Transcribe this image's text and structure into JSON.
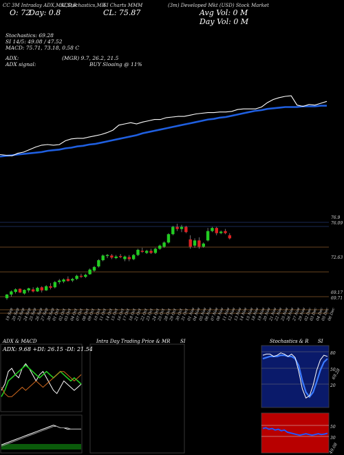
{
  "header": {
    "line1_left": "CC 3M Intraday ADX,MACD,R",
    "line1_mid": "SI,Stochastics,MR",
    "line1_mid2": "SI Charts MMM",
    "line1_right": "(3m) Developed Mkt (USD) Stock Market",
    "open_label": "O: 72",
    "day_label": "Day: 0.8",
    "close_label": "CL: 75.87",
    "avg_vol": "Avg Vol: 0  M",
    "day_vol": "Day Vol: 0   M"
  },
  "info": {
    "stoch": "Stochastics: 69.28",
    "rsi": "SI 14/5: 49.08 / 47.52",
    "macd": "MACD: 75.71, 73.18, 0.58  C",
    "adx": "ADX:",
    "adx_val": "(MGR) 9.7, 26.2, 21.5",
    "adx_signal": "ADX  signal:",
    "adx_signal_val": "BUY Sloaing @ 11%"
  },
  "price_labels": {
    "p1": "76.9",
    "p2": "76.09",
    "p3": "72.63",
    "p4": "69.17",
    "p5": "69.71"
  },
  "dates": [
    "19 Sep",
    "20 Sep",
    "23 Sep",
    "24 Sep",
    "25 Sep",
    "26 Sep",
    "27 Sep",
    "30 Sep",
    "01 Oct",
    "02 Oct",
    "03 Oct",
    "04 Oct",
    "07 Oct",
    "08 Oct",
    "09 Oct",
    "10 Oct",
    "11 Oct",
    "14 Oct",
    "15 Oct",
    "16 Oct",
    "17 Oct",
    "18 Oct",
    "21 Oct",
    "22 Oct",
    "23 Oct",
    "24 Oct",
    "25 Oct",
    "28 Oct",
    "29 Oct",
    "30 Oct",
    "31 Oct",
    "01 Nov",
    "04 Nov",
    "05 Nov",
    "06 Nov",
    "07 Nov",
    "08 Nov",
    "11 Nov",
    "12 Nov",
    "13 Nov",
    "14 Nov",
    "15 Nov",
    "18 Nov",
    "19 Nov",
    "20 Nov",
    "21 Nov",
    "22 Nov",
    "25 Nov",
    "26 Nov",
    "27 Nov",
    "29 Nov",
    "02 Dec",
    "03 Dec",
    "04 Dec",
    "05 Dec",
    "06 Dec"
  ],
  "panels": {
    "adx_title": "ADX  & MACD",
    "adx_readout": "ADX: 9.68  +DI: 26.15 -DI: 21.54",
    "mr_title": "Intra  Day Trading Price  & MR",
    "mr_si": "SI",
    "stoch_title": "Stochastics & R",
    "stoch_si": "SI",
    "stoch_levels": [
      "80",
      "50",
      "20"
    ],
    "stoch_value": "69.28",
    "rsi_levels": [
      "50",
      "30"
    ],
    "rsi_value": "49.08"
  },
  "colors": {
    "up": "#22cc22",
    "down": "#dd2222",
    "ema": "#1f5fe0",
    "price_line": "#ffffff",
    "gridline": "#8a5a2a",
    "stoch_bg": "#0a1a6a",
    "rsi_bg": "#b80000"
  },
  "chart_data": [
    {
      "type": "line",
      "name_role": "upper-price-and-average",
      "x": [
        0,
        1,
        2,
        3,
        4,
        5,
        6,
        7,
        8,
        9,
        10,
        11,
        12,
        13,
        14,
        15,
        16,
        17,
        18,
        19,
        20,
        21,
        22,
        23,
        24,
        25,
        26,
        27,
        28,
        29,
        30,
        31,
        32,
        33,
        34,
        35,
        36,
        37,
        38,
        39,
        40,
        41,
        42,
        43,
        44,
        45,
        46,
        47,
        48,
        49,
        50,
        51,
        52,
        53,
        54,
        55
      ],
      "series": [
        {
          "values": [
            6,
            5,
            4,
            8,
            10,
            14,
            18,
            21,
            22,
            21,
            22,
            28,
            31,
            32,
            32,
            34,
            36,
            38,
            41,
            45,
            53,
            55,
            57,
            55,
            58,
            60,
            62,
            62,
            65,
            66,
            67,
            67,
            69,
            71,
            72,
            73,
            73,
            74,
            74,
            75,
            78,
            79,
            79,
            79,
            82,
            89,
            94,
            97,
            99,
            100,
            85,
            83,
            86,
            85,
            88,
            91
          ]
        },
        {
          "values": [
            3,
            4,
            5,
            6,
            7,
            8,
            9,
            10,
            12,
            13,
            14,
            16,
            17,
            19,
            20,
            22,
            23,
            25,
            27,
            29,
            31,
            33,
            35,
            37,
            40,
            42,
            44,
            46,
            48,
            50,
            52,
            54,
            56,
            58,
            60,
            62,
            63,
            65,
            66,
            68,
            70,
            72,
            74,
            76,
            77,
            79,
            80,
            81,
            82,
            82,
            82,
            83,
            83,
            83,
            84,
            84
          ]
        }
      ],
      "ylim": [
        0,
        110
      ]
    },
    {
      "type": "bar",
      "name_role": "candlesticks",
      "ohlc": [
        [
          69.45,
          69.85,
          69.3,
          69.8
        ],
        [
          69.8,
          70.2,
          69.6,
          70.1
        ],
        [
          70.05,
          70.4,
          69.9,
          70.3
        ],
        [
          70.35,
          70.4,
          69.95,
          70.0
        ],
        [
          69.9,
          70.3,
          69.8,
          70.25
        ],
        [
          70.2,
          70.45,
          70.0,
          70.4
        ],
        [
          70.3,
          70.5,
          70.0,
          70.1
        ],
        [
          70.1,
          70.55,
          70.05,
          70.45
        ],
        [
          70.5,
          70.6,
          70.0,
          70.2
        ],
        [
          70.2,
          70.7,
          70.15,
          70.6
        ],
        [
          70.6,
          70.9,
          70.3,
          70.45
        ],
        [
          70.5,
          71.1,
          70.4,
          71.0
        ],
        [
          71.0,
          71.3,
          70.8,
          71.15
        ],
        [
          71.05,
          71.35,
          70.9,
          71.25
        ],
        [
          71.3,
          71.55,
          71.05,
          71.1
        ],
        [
          71.15,
          71.4,
          71.0,
          71.3
        ],
        [
          71.3,
          71.7,
          71.2,
          71.6
        ],
        [
          71.6,
          71.8,
          71.4,
          71.5
        ],
        [
          71.5,
          71.8,
          71.4,
          71.7
        ],
        [
          71.75,
          72.3,
          71.7,
          72.2
        ],
        [
          72.1,
          72.55,
          72.0,
          72.45
        ],
        [
          72.5,
          73.2,
          72.4,
          73.1
        ],
        [
          73.1,
          73.65,
          73.0,
          73.55
        ],
        [
          73.5,
          73.7,
          73.3,
          73.6
        ],
        [
          73.55,
          73.7,
          73.2,
          73.35
        ],
        [
          73.3,
          73.6,
          73.2,
          73.45
        ],
        [
          73.5,
          73.7,
          73.3,
          73.4
        ],
        [
          73.2,
          73.55,
          73.0,
          73.45
        ],
        [
          73.4,
          73.6,
          73.0,
          73.2
        ],
        [
          73.2,
          73.7,
          73.1,
          73.6
        ],
        [
          73.6,
          74.2,
          73.5,
          74.1
        ],
        [
          74.0,
          74.3,
          73.8,
          73.9
        ],
        [
          73.8,
          74.1,
          73.7,
          74.0
        ],
        [
          74.0,
          74.2,
          73.7,
          73.8
        ],
        [
          73.8,
          74.3,
          73.7,
          74.2
        ],
        [
          74.2,
          74.6,
          74.1,
          74.5
        ],
        [
          74.4,
          74.9,
          74.3,
          74.8
        ],
        [
          74.8,
          75.7,
          74.7,
          75.6
        ],
        [
          75.6,
          76.4,
          75.5,
          76.3
        ],
        [
          76.3,
          76.6,
          75.9,
          76.1
        ],
        [
          76.1,
          76.5,
          75.8,
          76.3
        ],
        [
          76.3,
          76.4,
          75.7,
          75.8
        ],
        [
          75.1,
          75.5,
          74.2,
          74.4
        ],
        [
          74.5,
          75.2,
          74.3,
          75.0
        ],
        [
          75.0,
          75.3,
          74.2,
          74.4
        ],
        [
          74.4,
          74.8,
          74.3,
          74.7
        ],
        [
          75.0,
          76.2,
          74.9,
          75.9
        ],
        [
          75.9,
          76.3,
          75.8,
          76.2
        ],
        [
          76.2,
          76.3,
          75.5,
          75.7
        ],
        [
          75.7,
          75.95,
          75.6,
          75.85
        ],
        [
          75.9,
          76.1,
          75.6,
          75.7
        ],
        [
          75.5,
          75.7,
          75.1,
          75.2
        ]
      ],
      "ylim": [
        69.0,
        77.4
      ]
    },
    {
      "type": "line",
      "name_role": "adx-di",
      "series": [
        {
          "values": [
            10,
            14,
            22,
            24,
            20,
            18,
            24,
            27,
            24,
            20,
            16,
            20,
            22,
            18,
            14,
            10,
            8,
            12,
            16,
            14,
            12,
            10,
            12,
            14
          ]
        },
        {
          "values": [
            6,
            10,
            16,
            18,
            20,
            22,
            24,
            26,
            24,
            22,
            20,
            18,
            20,
            22,
            20,
            18,
            20,
            22,
            20,
            18,
            16,
            18,
            16,
            14
          ]
        },
        {
          "values": [
            12,
            8,
            6,
            6,
            8,
            10,
            12,
            10,
            12,
            14,
            16,
            14,
            12,
            14,
            16,
            18,
            20,
            22,
            22,
            20,
            18,
            16,
            18,
            20
          ]
        }
      ],
      "ylim": [
        0,
        35
      ]
    },
    {
      "type": "line",
      "name_role": "macd",
      "series": [
        {
          "values": [
            3,
            4,
            5,
            6,
            7,
            8,
            9,
            10,
            11,
            12,
            13,
            14,
            15,
            16,
            17,
            18,
            17,
            16,
            16,
            15,
            15,
            15,
            15,
            15
          ]
        },
        {
          "values": [
            2,
            3,
            4,
            5,
            6,
            7,
            8,
            9,
            10,
            11,
            12,
            13,
            14,
            15,
            16,
            17,
            17,
            16,
            16,
            16,
            15,
            15,
            15,
            15
          ]
        }
      ],
      "ylim": [
        0,
        22
      ]
    },
    {
      "type": "line",
      "name_role": "stochastics",
      "series": [
        {
          "values": [
            88,
            90,
            90,
            86,
            88,
            92,
            90,
            86,
            90,
            84,
            60,
            30,
            14,
            18,
            36,
            62,
            80,
            88,
            86
          ]
        },
        {
          "values": [
            82,
            84,
            86,
            86,
            86,
            88,
            88,
            86,
            86,
            82,
            70,
            44,
            24,
            16,
            24,
            42,
            62,
            76,
            82
          ]
        }
      ],
      "ylim": [
        0,
        100
      ]
    },
    {
      "type": "line",
      "name_role": "rsi",
      "series": [
        {
          "values": [
            62,
            64,
            60,
            62,
            58,
            60,
            56,
            58,
            52,
            50,
            48,
            46,
            44,
            46,
            48,
            46,
            44,
            46,
            48,
            46,
            47,
            49
          ]
        }
      ],
      "ylim": [
        0,
        100
      ]
    }
  ]
}
